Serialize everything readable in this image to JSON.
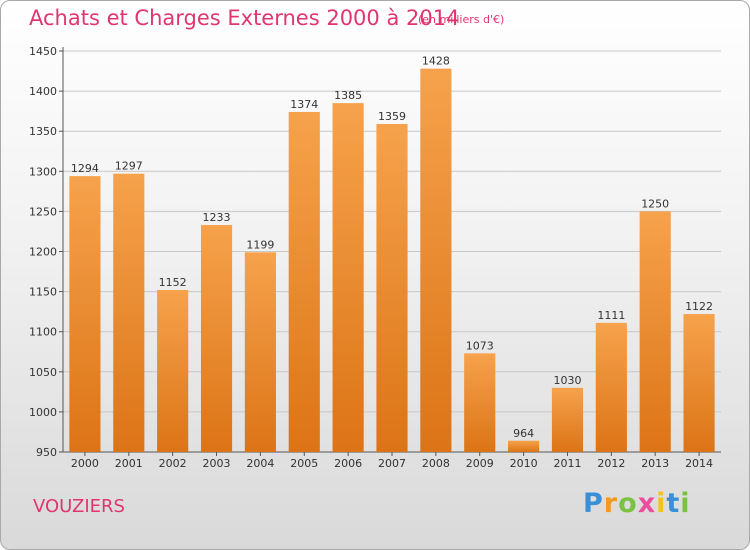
{
  "title": "Achats et Charges Externes 2000 à 2014",
  "subtitle": "(en milliers d'€)",
  "city": "VOUZIERS",
  "logo": {
    "letters": [
      "P",
      "r",
      "o",
      "x",
      "i",
      "t",
      "i"
    ],
    "colors": [
      "#3a8fd8",
      "#f39a1e",
      "#7cc242",
      "#e94f9c",
      "#f3c21e",
      "#3a8fd8",
      "#7cc242"
    ]
  },
  "chart_data": {
    "type": "bar",
    "categories": [
      "2000",
      "2001",
      "2002",
      "2003",
      "2004",
      "2005",
      "2006",
      "2007",
      "2008",
      "2009",
      "2010",
      "2011",
      "2012",
      "2013",
      "2014"
    ],
    "values": [
      1294,
      1297,
      1152,
      1233,
      1199,
      1374,
      1385,
      1359,
      1428,
      1073,
      964,
      1030,
      1111,
      1250,
      1122
    ],
    "title": "Achats et Charges Externes 2000 à 2014",
    "ylim": [
      950,
      1450
    ],
    "yticks": [
      950,
      1000,
      1050,
      1100,
      1150,
      1200,
      1250,
      1300,
      1350,
      1400,
      1450
    ],
    "grid": true,
    "bar_color": "#f08c2a"
  }
}
